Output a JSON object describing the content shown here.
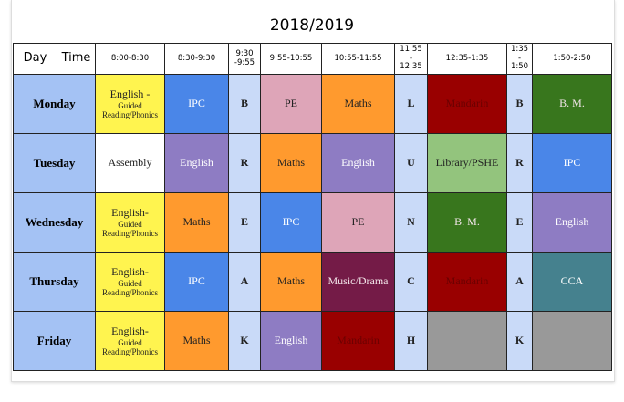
{
  "header": {
    "title": "2018/2019"
  },
  "table": {
    "columns": [
      [
        "Day"
      ],
      [
        "Time"
      ],
      [
        "8:00-8:30"
      ],
      [
        "8:30-9:30"
      ],
      [
        "9:30",
        "-9:55"
      ],
      [
        "9:55-10:55"
      ],
      [
        "10:55-11:55"
      ],
      [
        "11:55",
        "-",
        "12:35"
      ],
      [
        "12:35-1:35"
      ],
      [
        "1:35",
        "-",
        "1:50"
      ],
      [
        "1:50-2:50"
      ]
    ],
    "rows": [
      {
        "day": "Monday",
        "cells": [
          {
            "lines": [
              "English -",
              "Guided",
              "Reading/Phonics"
            ],
            "color": "#fff44f"
          },
          {
            "lines": [
              "IPC"
            ],
            "color": "#4a86e8"
          },
          {
            "lines": [
              "B"
            ],
            "color": "#c9daf8"
          },
          {
            "lines": [
              "PE"
            ],
            "color": "#dea5b8"
          },
          {
            "lines": [
              "Maths"
            ],
            "color": "#ff9a2e"
          },
          {
            "lines": [
              "L"
            ],
            "color": "#c9daf8"
          },
          {
            "lines": [
              "Mandarin"
            ],
            "color": "#990000"
          },
          {
            "lines": [
              "B"
            ],
            "color": "#c9daf8"
          },
          {
            "lines": [
              "B. M."
            ],
            "color": "#38761d"
          }
        ]
      },
      {
        "day": "Tuesday",
        "cells": [
          {
            "lines": [
              "Assembly"
            ],
            "color": "#ffffff"
          },
          {
            "lines": [
              "English"
            ],
            "color": "#8e7cc3"
          },
          {
            "lines": [
              "R"
            ],
            "color": "#c9daf8"
          },
          {
            "lines": [
              "Maths"
            ],
            "color": "#ff9a2e"
          },
          {
            "lines": [
              "English"
            ],
            "color": "#8e7cc3"
          },
          {
            "lines": [
              "U"
            ],
            "color": "#c9daf8"
          },
          {
            "lines": [
              "Library/PSHE"
            ],
            "color": "#93c47d"
          },
          {
            "lines": [
              "R"
            ],
            "color": "#c9daf8"
          },
          {
            "lines": [
              "IPC"
            ],
            "color": "#4a86e8"
          }
        ]
      },
      {
        "day": "Wednesday",
        "cells": [
          {
            "lines": [
              "English-",
              "Guided",
              "Reading/Phonics"
            ],
            "color": "#fff44f"
          },
          {
            "lines": [
              "Maths"
            ],
            "color": "#ff9a2e"
          },
          {
            "lines": [
              "E"
            ],
            "color": "#c9daf8"
          },
          {
            "lines": [
              "IPC"
            ],
            "color": "#4a86e8"
          },
          {
            "lines": [
              "PE"
            ],
            "color": "#dea5b8"
          },
          {
            "lines": [
              "N"
            ],
            "color": "#c9daf8"
          },
          {
            "lines": [
              "B. M."
            ],
            "color": "#38761d"
          },
          {
            "lines": [
              "E"
            ],
            "color": "#c9daf8"
          },
          {
            "lines": [
              "English"
            ],
            "color": "#8e7cc3"
          }
        ]
      },
      {
        "day": "Thursday",
        "cells": [
          {
            "lines": [
              "English-",
              "Guided",
              "Reading/Phonics"
            ],
            "color": "#fff44f"
          },
          {
            "lines": [
              "IPC"
            ],
            "color": "#4a86e8"
          },
          {
            "lines": [
              "A"
            ],
            "color": "#c9daf8"
          },
          {
            "lines": [
              "Maths"
            ],
            "color": "#ff9a2e"
          },
          {
            "lines": [
              "Music/Drama"
            ],
            "color": "#741b47"
          },
          {
            "lines": [
              "C"
            ],
            "color": "#c9daf8"
          },
          {
            "lines": [
              "Mandarin"
            ],
            "color": "#990000"
          },
          {
            "lines": [
              "A"
            ],
            "color": "#c9daf8"
          },
          {
            "lines": [
              "CCA"
            ],
            "color": "#45818e"
          }
        ]
      },
      {
        "day": "Friday",
        "cells": [
          {
            "lines": [
              "English-",
              "Guided",
              "Reading/Phonics"
            ],
            "color": "#fff44f"
          },
          {
            "lines": [
              "Maths"
            ],
            "color": "#ff9a2e"
          },
          {
            "lines": [
              "K"
            ],
            "color": "#c9daf8"
          },
          {
            "lines": [
              "English"
            ],
            "color": "#8e7cc3"
          },
          {
            "lines": [
              "Mandarin"
            ],
            "color": "#990000"
          },
          {
            "lines": [
              "H"
            ],
            "color": "#c9daf8"
          },
          {
            "color": "#999999"
          },
          {
            "lines": [
              "K"
            ],
            "color": "#c9daf8"
          },
          {
            "color": "#999999"
          }
        ]
      }
    ]
  }
}
